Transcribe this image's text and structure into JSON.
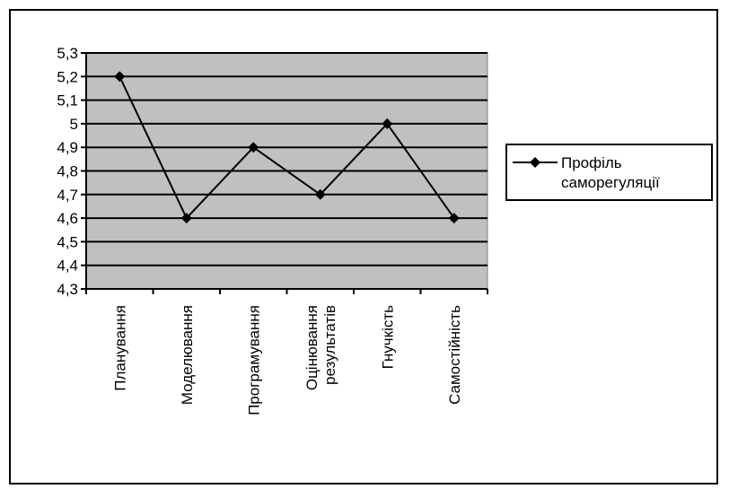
{
  "chart_data": {
    "type": "line",
    "categories": [
      [
        "Планування"
      ],
      [
        "Моделювання"
      ],
      [
        "Програмування"
      ],
      [
        "Оцінювання",
        "результатів"
      ],
      [
        "Гнучкість"
      ],
      [
        "Самостійність"
      ]
    ],
    "series": [
      {
        "name": [
          "Профіль",
          "саморегуляції"
        ],
        "values": [
          5.2,
          4.6,
          4.9,
          4.7,
          5.0,
          4.6
        ]
      }
    ],
    "y_ticks": [
      "5,3",
      "5,2",
      "5,1",
      "5",
      "4,9",
      "4,8",
      "4,7",
      "4,6",
      "4,5",
      "4,4",
      "4,3"
    ],
    "ylim": [
      4.3,
      5.3
    ],
    "grid": true,
    "plot_background": "#c0c0c0",
    "line_color": "#000000",
    "marker": "diamond",
    "legend_position": "right"
  }
}
